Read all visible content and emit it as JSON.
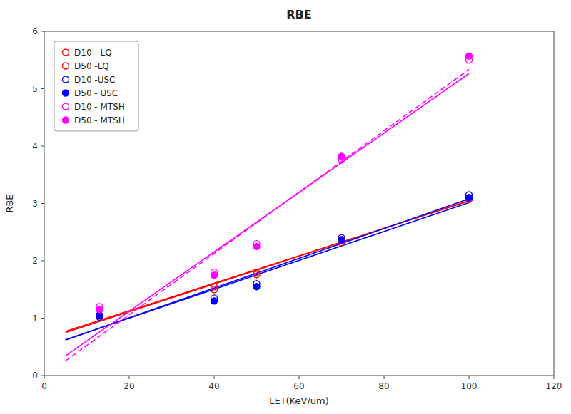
{
  "chart_data": {
    "type": "scatter",
    "title": "RBE",
    "xlabel": "LET(KeV/um)",
    "ylabel": "RBE",
    "xlim": [
      0,
      120
    ],
    "ylim": [
      0,
      6
    ],
    "xticks": [
      0,
      20,
      40,
      60,
      80,
      100,
      120
    ],
    "yticks": [
      0,
      1,
      2,
      3,
      4,
      5,
      6
    ],
    "grid": false,
    "legend": "upper left",
    "series": [
      {
        "name": "D10 - LQ",
        "type": "scatter",
        "color": "#FF0000",
        "marker": "open-circle",
        "x": [
          13,
          40,
          50,
          70,
          100
        ],
        "values": [
          1.02,
          1.55,
          1.76,
          2.32,
          3.1
        ]
      },
      {
        "name": "D50 -LQ",
        "type": "scatter",
        "color": "#FF0000",
        "marker": "open-circle",
        "x": [
          13,
          40,
          50,
          70,
          100
        ],
        "values": [
          1.05,
          1.5,
          1.8,
          2.37,
          3.07
        ]
      },
      {
        "name": "D10 -USC",
        "type": "scatter",
        "color": "#0000FF",
        "marker": "open-circle",
        "x": [
          13,
          40,
          50,
          70,
          100
        ],
        "values": [
          1.02,
          1.35,
          1.6,
          2.4,
          3.15
        ]
      },
      {
        "name": "D50 - USC",
        "type": "scatter",
        "color": "#0000FF",
        "marker": "filled-circle",
        "x": [
          13,
          40,
          50,
          70,
          100
        ],
        "values": [
          1.05,
          1.3,
          1.55,
          2.36,
          3.1
        ]
      },
      {
        "name": "D10 - MTSH",
        "type": "scatter",
        "color": "#FF00FF",
        "marker": "open-circle",
        "x": [
          13,
          40,
          50,
          70,
          100
        ],
        "values": [
          1.2,
          1.8,
          2.3,
          3.76,
          5.5
        ]
      },
      {
        "name": "D50 - MTSH",
        "type": "scatter",
        "color": "#FF00FF",
        "marker": "filled-circle",
        "x": [
          13,
          40,
          50,
          70,
          100
        ],
        "values": [
          1.15,
          1.75,
          2.25,
          3.82,
          5.57
        ]
      },
      {
        "type": "line",
        "color": "#FF0000",
        "line_style": "solid",
        "x": [
          5,
          100
        ],
        "values": [
          0.748038,
          3.050183
        ]
      },
      {
        "type": "line",
        "color": "#FF0000",
        "line_style": "solid",
        "x": [
          5,
          100
        ],
        "values": [
          0.771092,
          3.044404
        ]
      },
      {
        "type": "line",
        "color": "#0000FF",
        "line_style": "solid",
        "x": [
          5,
          100
        ],
        "values": [
          0.618765,
          3.080405
        ]
      },
      {
        "type": "line",
        "color": "#0000FF",
        "line_style": "solid",
        "x": [
          5,
          100
        ],
        "values": [
          0.623687,
          3.014609
        ]
      },
      {
        "type": "line",
        "color": "#FF00FF",
        "line_style": "solid",
        "x": [
          5,
          100
        ],
        "values": [
          0.342834,
          5.263616
        ]
      },
      {
        "type": "line",
        "color": "#FF00FF",
        "line_style": "dashed",
        "x": [
          5,
          100
        ],
        "values": [
          0.255739,
          5.335674
        ]
      }
    ]
  }
}
